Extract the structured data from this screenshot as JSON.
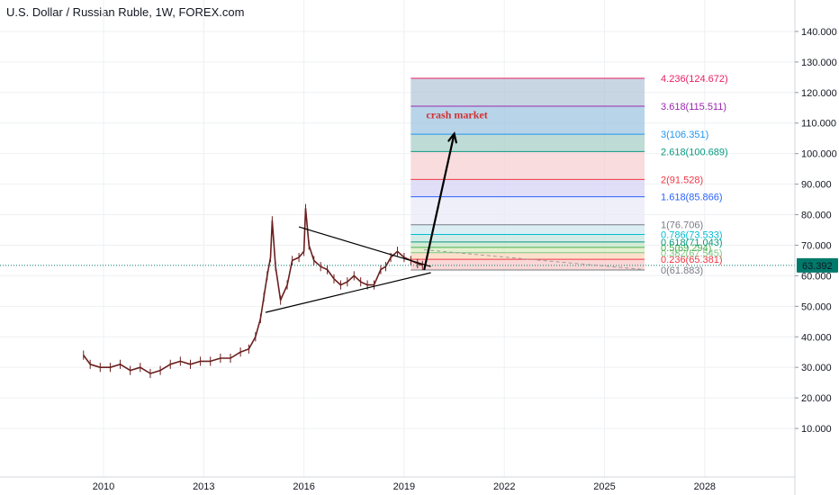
{
  "title": "U.S. Dollar / Russian Ruble, 1W, FOREX.com",
  "colors": {
    "candle": "#6b1f1f",
    "grid": "#eef0f3",
    "price_badge": "#00796b",
    "annotation": "#d32f2f",
    "trendline": "#000000"
  },
  "chart_data": {
    "type": "line",
    "title": "U.S. Dollar / Russian Ruble, 1W, FOREX.com",
    "xlabel": "",
    "ylabel": "",
    "xlim": [
      2006.9,
      2030.7
    ],
    "ylim": [
      -5.9,
      150.3
    ],
    "grid": true,
    "x_ticks": [
      "2010",
      "2013",
      "2016",
      "2019",
      "2022",
      "2025",
      "2028"
    ],
    "y_ticks": [
      "10.000",
      "20.000",
      "30.000",
      "40.000",
      "50.000",
      "60.000",
      "70.000",
      "80.000",
      "90.000",
      "100.000",
      "110.000",
      "120.000",
      "130.000",
      "140.000"
    ],
    "current_price": "63.392",
    "series": [
      {
        "x": [
          2009.4,
          2009.6,
          2009.9,
          2010.2,
          2010.5,
          2010.8,
          2011.1,
          2011.4,
          2011.7,
          2012.0,
          2012.3,
          2012.6,
          2012.9,
          2013.2,
          2013.5,
          2013.8,
          2014.1,
          2014.35,
          2014.55,
          2014.7,
          2014.8,
          2014.9,
          2015.0,
          2015.05,
          2015.15,
          2015.3,
          2015.5,
          2015.65,
          2015.85,
          2016.0,
          2016.05,
          2016.15,
          2016.3,
          2016.5,
          2016.7,
          2016.9,
          2017.1,
          2017.3,
          2017.5,
          2017.7,
          2017.9,
          2018.1,
          2018.3,
          2018.45,
          2018.6,
          2018.8,
          2019.0,
          2019.2,
          2019.4,
          2019.55
        ],
        "values": [
          34,
          31,
          30,
          30,
          31,
          29,
          30,
          28,
          29,
          31,
          32,
          31,
          32,
          32,
          33,
          33,
          35,
          36,
          40,
          46,
          53,
          60,
          66,
          78,
          63,
          52,
          57,
          65,
          66,
          68,
          82,
          70,
          65,
          63,
          62,
          59,
          57,
          58,
          60,
          58,
          57,
          57,
          62,
          63,
          66,
          68,
          66,
          65,
          64,
          63.4
        ]
      }
    ],
    "annotations": [
      "crash market"
    ],
    "fib_levels": [
      {
        "label": "0(61.883)",
        "value": 61.883,
        "color": "#787b86",
        "zone": "#f8c9c9"
      },
      {
        "label": "0.236(65.381)",
        "value": 65.381,
        "color": "#f23645",
        "zone": "#f9d7b9"
      },
      {
        "label": "0.382(67.545)",
        "value": 67.545,
        "color": "#81c784",
        "zone": "#d9ecc0"
      },
      {
        "label": "0.5(69.294)",
        "value": 69.294,
        "color": "#4caf50",
        "zone": "#c8e6c9"
      },
      {
        "label": "0.618(71.043)",
        "value": 71.043,
        "color": "#089981",
        "zone": "#c5e6e0"
      },
      {
        "label": "0.786(73.533)",
        "value": 73.533,
        "color": "#00bcd4",
        "zone": "#cfe8f0"
      },
      {
        "label": "1(76.706)",
        "value": 76.706,
        "color": "#787b86",
        "zone": "#e8eaf6"
      },
      {
        "label": "1.618(85.866)",
        "value": 85.866,
        "color": "#2962ff",
        "zone": "#d7d3f5"
      },
      {
        "label": "2(91.528)",
        "value": 91.528,
        "color": "#f23645",
        "zone": "#f6d0d3"
      },
      {
        "label": "2.618(100.689)",
        "value": 100.689,
        "color": "#089981",
        "zone": "#a9cfc7"
      },
      {
        "label": "3(106.351)",
        "value": 106.351,
        "color": "#2196f3",
        "zone": "#9fc5e1"
      },
      {
        "label": "3.618(115.511)",
        "value": 115.511,
        "color": "#9c27b0",
        "zone": "#b6c8d9"
      },
      {
        "label": "4.236(124.672)",
        "value": 124.672,
        "color": "#e91e63",
        "zone": "#c8ced9"
      }
    ],
    "fib_x_range": [
      2019.2,
      2026.2
    ],
    "triangle": {
      "upper": {
        "x": [
          2015.85,
          2019.8
        ],
        "y": [
          76,
          63
        ]
      },
      "lower": {
        "x": [
          2014.85,
          2019.8
        ],
        "y": [
          48,
          61
        ]
      },
      "extension": {
        "x": [
          2019.6,
          2026.2
        ],
        "y": [
          68.5,
          62
        ]
      }
    },
    "projection_arrow": {
      "x": [
        2019.6,
        2020.5
      ],
      "y": [
        61.9,
        106.5
      ]
    }
  }
}
